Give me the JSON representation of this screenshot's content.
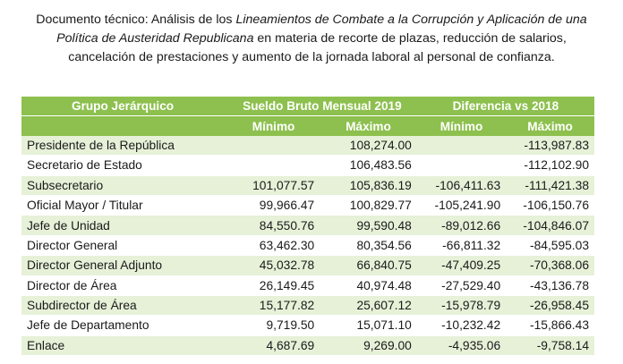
{
  "caption": {
    "line1_prefix": "Documento técnico: Análisis de los ",
    "line1_italic": "Lineamientos de Combate a la Corrupción y Aplicación de una",
    "line2_italic": "Política de Austeridad Republicana",
    "line2_rest": " en materia de recorte de plazas, reducción de salarios,",
    "line3": "cancelación de prestaciones y aumento de la jornada laboral al personal de confianza."
  },
  "table": {
    "header": {
      "group": "Grupo Jerárquico",
      "salary": "Sueldo Bruto Mensual 2019",
      "diff": "Diferencia vs 2018",
      "min": "Mínimo",
      "max": "Máximo"
    },
    "rows": [
      {
        "name": "Presidente de la República",
        "min2019": "",
        "max2019": "108,274.00",
        "dmin": "",
        "dmax": "-113,987.83"
      },
      {
        "name": "Secretario de Estado",
        "min2019": "",
        "max2019": "106,483.56",
        "dmin": "",
        "dmax": "-112,102.90"
      },
      {
        "name": "Subsecretario",
        "min2019": "101,077.57",
        "max2019": "105,836.19",
        "dmin": "-106,411.63",
        "dmax": "-111,421.38"
      },
      {
        "name": "Oficial Mayor / Titular",
        "min2019": "99,966.47",
        "max2019": "100,829.77",
        "dmin": "-105,241.90",
        "dmax": "-106,150.76"
      },
      {
        "name": "Jefe de Unidad",
        "min2019": "84,550.76",
        "max2019": "99,590.48",
        "dmin": "-89,012.66",
        "dmax": "-104,846.07"
      },
      {
        "name": "Director General",
        "min2019": "63,462.30",
        "max2019": "80,354.56",
        "dmin": "-66,811.32",
        "dmax": "-84,595.03"
      },
      {
        "name": "Director General Adjunto",
        "min2019": "45,032.78",
        "max2019": "66,840.75",
        "dmin": "-47,409.25",
        "dmax": "-70,368.06"
      },
      {
        "name": "Director de Área",
        "min2019": "26,149.45",
        "max2019": "40,974.48",
        "dmin": "-27,529.40",
        "dmax": "-43,136.78"
      },
      {
        "name": "Subdirector de Área",
        "min2019": "15,177.82",
        "max2019": "25,607.12",
        "dmin": "-15,978.79",
        "dmax": "-26,958.45"
      },
      {
        "name": "Jefe de Departamento",
        "min2019": "9,719.50",
        "max2019": "15,071.10",
        "dmin": "-10,232.42",
        "dmax": "-15,866.43"
      },
      {
        "name": "Enlace",
        "min2019": "4,687.69",
        "max2019": "9,269.00",
        "dmin": "-4,935.06",
        "dmax": "-9,758.14"
      }
    ]
  }
}
